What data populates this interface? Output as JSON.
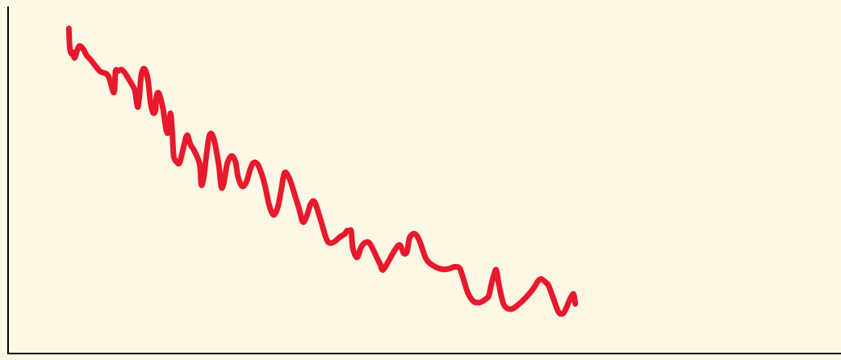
{
  "colors": {
    "background": "#fdf7e6",
    "line": "#e8192c",
    "axis": "#000000"
  },
  "chart_data": {
    "type": "line",
    "title": "",
    "xlabel": "",
    "ylabel": "",
    "grid": false,
    "legend": "none",
    "xlim": [
      0,
      100
    ],
    "ylim": [
      0,
      100
    ],
    "series": [
      {
        "x": [
          7.3,
          7.4,
          7.6,
          7.8,
          8.0,
          8.5,
          9.0,
          9.4,
          10.0,
          11.0,
          12.0,
          12.7,
          12.9,
          13.2,
          13.6,
          14.0,
          14.6,
          15.2,
          15.6,
          16.0,
          16.4,
          16.8,
          17.1,
          17.4,
          17.7,
          17.8,
          18.1,
          18.6,
          19.0,
          19.3,
          19.5,
          19.7,
          19.8,
          19.9,
          20.2,
          20.6,
          21.1,
          21.5,
          21.9,
          22.4,
          23.0,
          23.2,
          23.5,
          23.8,
          24.2,
          24.7,
          25.3,
          25.6,
          25.9,
          26.3,
          26.8,
          27.3,
          27.6,
          28.1,
          28.6,
          29.1,
          29.5,
          30.0,
          30.5,
          30.9,
          31.3,
          31.7,
          32.0,
          32.4,
          32.8,
          33.2,
          33.8,
          34.4,
          34.9,
          35.4,
          35.9,
          36.3,
          36.8,
          37.5,
          38.3,
          39.0,
          39.9,
          40.4,
          40.7,
          41.0,
          41.2,
          41.4,
          41.9,
          42.4,
          42.9,
          43.4,
          43.9,
          44.4,
          44.7,
          45.0,
          45.7,
          46.3,
          47.0,
          47.5,
          47.9,
          48.2,
          48.8,
          49.4,
          50.2,
          51.2,
          52.1,
          52.9,
          53.6,
          54.2,
          54.6,
          55.2,
          55.9,
          56.6,
          57.3,
          57.7,
          58.0,
          58.3,
          58.6,
          58.9,
          59.5,
          60.4,
          61.5,
          62.6,
          63.2,
          63.6,
          64.0,
          64.5,
          64.9,
          65.5,
          66.1,
          66.6,
          67.0,
          67.3,
          67.6,
          67.9,
          68.1
        ],
        "y": [
          93.7,
          88.2,
          86.4,
          86.8,
          85.2,
          88.5,
          87.8,
          86.0,
          84.4,
          81.4,
          80.1,
          75.2,
          81.3,
          81.4,
          81.8,
          80.9,
          78.6,
          75.9,
          71.1,
          80.3,
          82.0,
          78.7,
          72.4,
          69.4,
          70.1,
          73.9,
          75.0,
          70.5,
          64.2,
          64.2,
          69.2,
          64.2,
          59.8,
          56.6,
          55.3,
          55.0,
          59.8,
          62.9,
          60.2,
          58.2,
          54.5,
          48.6,
          50.9,
          56.9,
          63.0,
          61.9,
          54.2,
          48.0,
          49.2,
          54.6,
          56.9,
          55.3,
          51.0,
          48.2,
          49.4,
          53.3,
          55.0,
          54.4,
          51.3,
          47.8,
          43.2,
          40.5,
          40.1,
          42.4,
          47.2,
          52.1,
          50.3,
          45.9,
          42.0,
          37.9,
          39.9,
          42.9,
          43.7,
          38.7,
          32.6,
          32.0,
          33.7,
          34.4,
          35.4,
          35.3,
          35.2,
          30.3,
          27.7,
          30.7,
          32.0,
          31.8,
          29.6,
          27.0,
          25.6,
          24.1,
          26.7,
          29.3,
          31.3,
          28.9,
          29.4,
          33.3,
          34.5,
          32.5,
          27.2,
          25.1,
          24.3,
          24.4,
          25.0,
          24.6,
          22.0,
          17.5,
          15.0,
          14.7,
          15.6,
          16.6,
          19.7,
          22.4,
          24.1,
          20.3,
          14.2,
          12.8,
          14.6,
          17.3,
          19.2,
          20.8,
          21.5,
          20.6,
          19.5,
          15.6,
          11.9,
          11.5,
          13.0,
          14.8,
          16.3,
          17.1,
          14.3
        ]
      }
    ]
  }
}
